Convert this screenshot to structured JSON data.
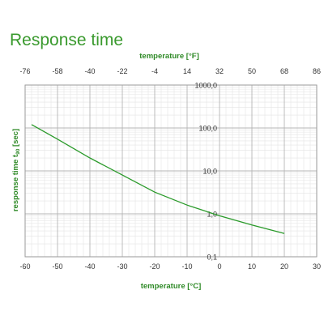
{
  "chart_data": {
    "type": "line",
    "title": "Response time",
    "xlabel": "temperature [°C]",
    "x2label": "temperature [°F]",
    "ylabel": "response time t90 [sec]",
    "ylabel_base": "response time t",
    "ylabel_sub": "90",
    "ylabel_unit": " [sec]",
    "xlim": [
      -60,
      30
    ],
    "x_ticks": [
      "-60",
      "-50",
      "-40",
      "-30",
      "-20",
      "-10",
      "0",
      "10",
      "20",
      "30"
    ],
    "x2_ticks": [
      "-76",
      "-58",
      "-40",
      "-22",
      "-4",
      "14",
      "32",
      "50",
      "68",
      "86"
    ],
    "yscale": "log",
    "ylim": [
      0.1,
      1000
    ],
    "y_ticks": [
      "1000,0",
      "100,0",
      "10,0",
      "1,0",
      "0,1"
    ],
    "grid": true,
    "series": [
      {
        "x": [
          -58,
          -50,
          -40,
          -30,
          -20,
          -10,
          0,
          10,
          20
        ],
        "y": [
          120,
          55,
          20,
          8,
          3.2,
          1.6,
          0.9,
          0.55,
          0.35
        ]
      }
    ]
  },
  "colors": {
    "accent": "#3a9a2e",
    "line": "#2a9a2a",
    "grid_major": "#b5b5b5",
    "grid_minor": "#e4e4e4"
  }
}
